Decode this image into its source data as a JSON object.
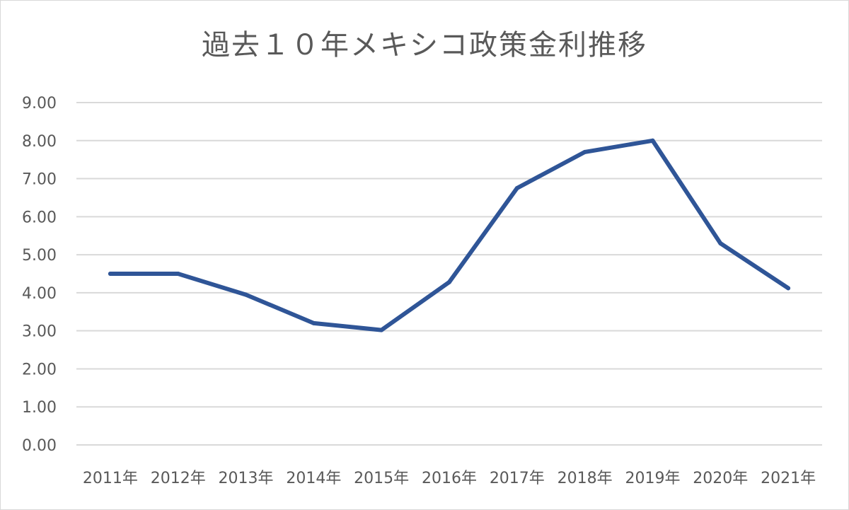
{
  "chart_data": {
    "type": "line",
    "title": "過去１０年メキシコ政策金利推移",
    "xlabel": "",
    "ylabel": "",
    "categories": [
      "2011年",
      "2012年",
      "2013年",
      "2014年",
      "2015年",
      "2016年",
      "2017年",
      "2018年",
      "2019年",
      "2020年",
      "2021年"
    ],
    "series": [
      {
        "values": [
          4.5,
          4.5,
          3.95,
          3.2,
          3.02,
          4.28,
          6.75,
          7.7,
          8.0,
          5.3,
          4.12
        ],
        "color": "#2f5597"
      }
    ],
    "yticks": [
      "0.00",
      "1.00",
      "2.00",
      "3.00",
      "4.00",
      "5.00",
      "6.00",
      "7.00",
      "8.00",
      "9.00"
    ],
    "ylim": [
      0,
      9
    ],
    "grid": true,
    "legend": "none",
    "colors": {
      "line": "#2f5597",
      "grid": "#d9d9d9",
      "text": "#595959"
    }
  }
}
